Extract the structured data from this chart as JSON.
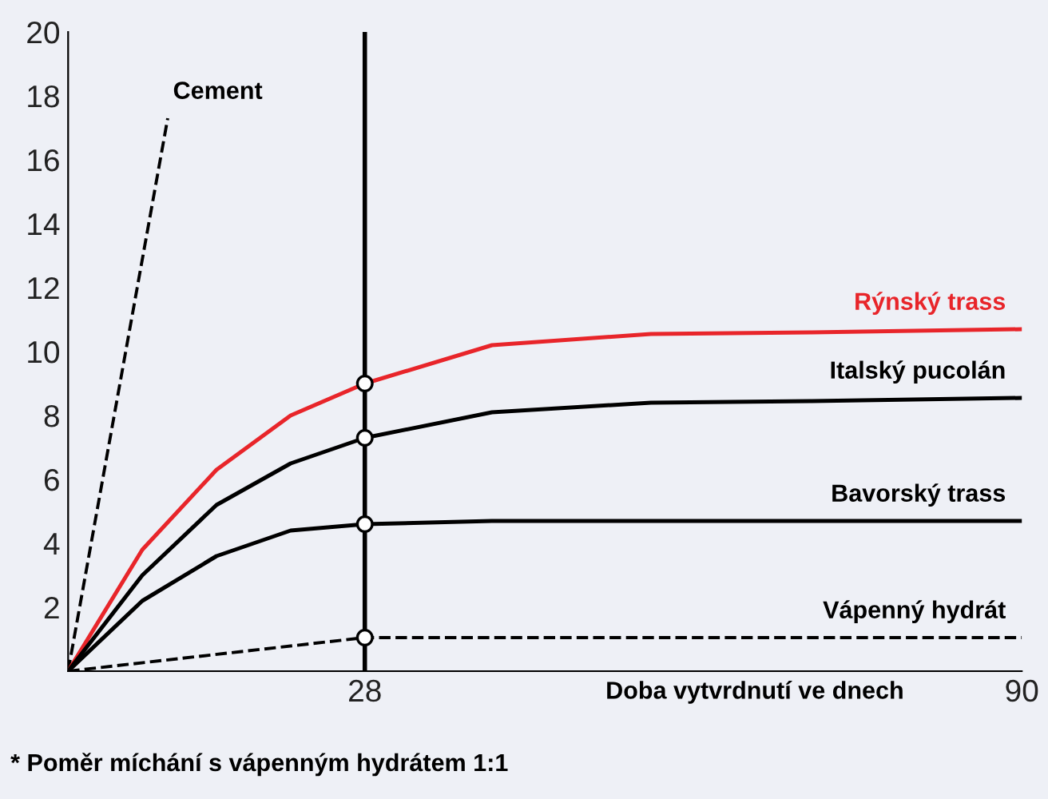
{
  "chart_data": {
    "type": "line",
    "xlabel": "Doba vytvrdnutí ve dnech",
    "xlim": [
      0,
      90
    ],
    "xticks": [
      28,
      90
    ],
    "ylim": [
      0,
      20
    ],
    "yticks": [
      2,
      4,
      6,
      8,
      10,
      12,
      14,
      16,
      18,
      20
    ],
    "grid": false,
    "legend": false,
    "series": [
      {
        "name": "Cement",
        "color": "#000000",
        "line_style": "dashed",
        "x": [
          0,
          9.4
        ],
        "values": [
          0,
          17.3
        ]
      },
      {
        "name": "Rýnský trass",
        "color": "#e8252a",
        "line_style": "solid",
        "x": [
          0,
          7,
          14,
          21,
          28,
          40,
          55,
          70,
          90
        ],
        "values": [
          0,
          3.8,
          6.3,
          8.0,
          9.0,
          10.2,
          10.55,
          10.6,
          10.7
        ]
      },
      {
        "name": "Italský pucolán",
        "color": "#000000",
        "line_style": "solid",
        "x": [
          0,
          7,
          14,
          21,
          28,
          40,
          55,
          70,
          90
        ],
        "values": [
          0,
          3.0,
          5.2,
          6.5,
          7.3,
          8.1,
          8.4,
          8.45,
          8.55
        ]
      },
      {
        "name": "Bavorský trass",
        "color": "#000000",
        "line_style": "solid",
        "x": [
          0,
          7,
          14,
          21,
          28,
          40,
          90
        ],
        "values": [
          0,
          2.2,
          3.6,
          4.4,
          4.6,
          4.7,
          4.7
        ]
      },
      {
        "name": "Vápenný hydrát",
        "color": "#000000",
        "line_style": "dashed",
        "x": [
          0,
          28,
          90
        ],
        "values": [
          0,
          1.05,
          1.05
        ]
      },
      {
        "type": "scatter",
        "color": "#000000",
        "marker": "circle",
        "x": [
          28,
          28,
          28,
          28
        ],
        "values": [
          9.0,
          7.3,
          4.6,
          1.05
        ]
      }
    ],
    "ref_lines": [
      {
        "axis": "x",
        "value": 28,
        "color": "#000000",
        "line_style": "solid"
      }
    ],
    "annotations": [
      "* Poměr míchání s vápenným hydrátem 1:1"
    ]
  }
}
